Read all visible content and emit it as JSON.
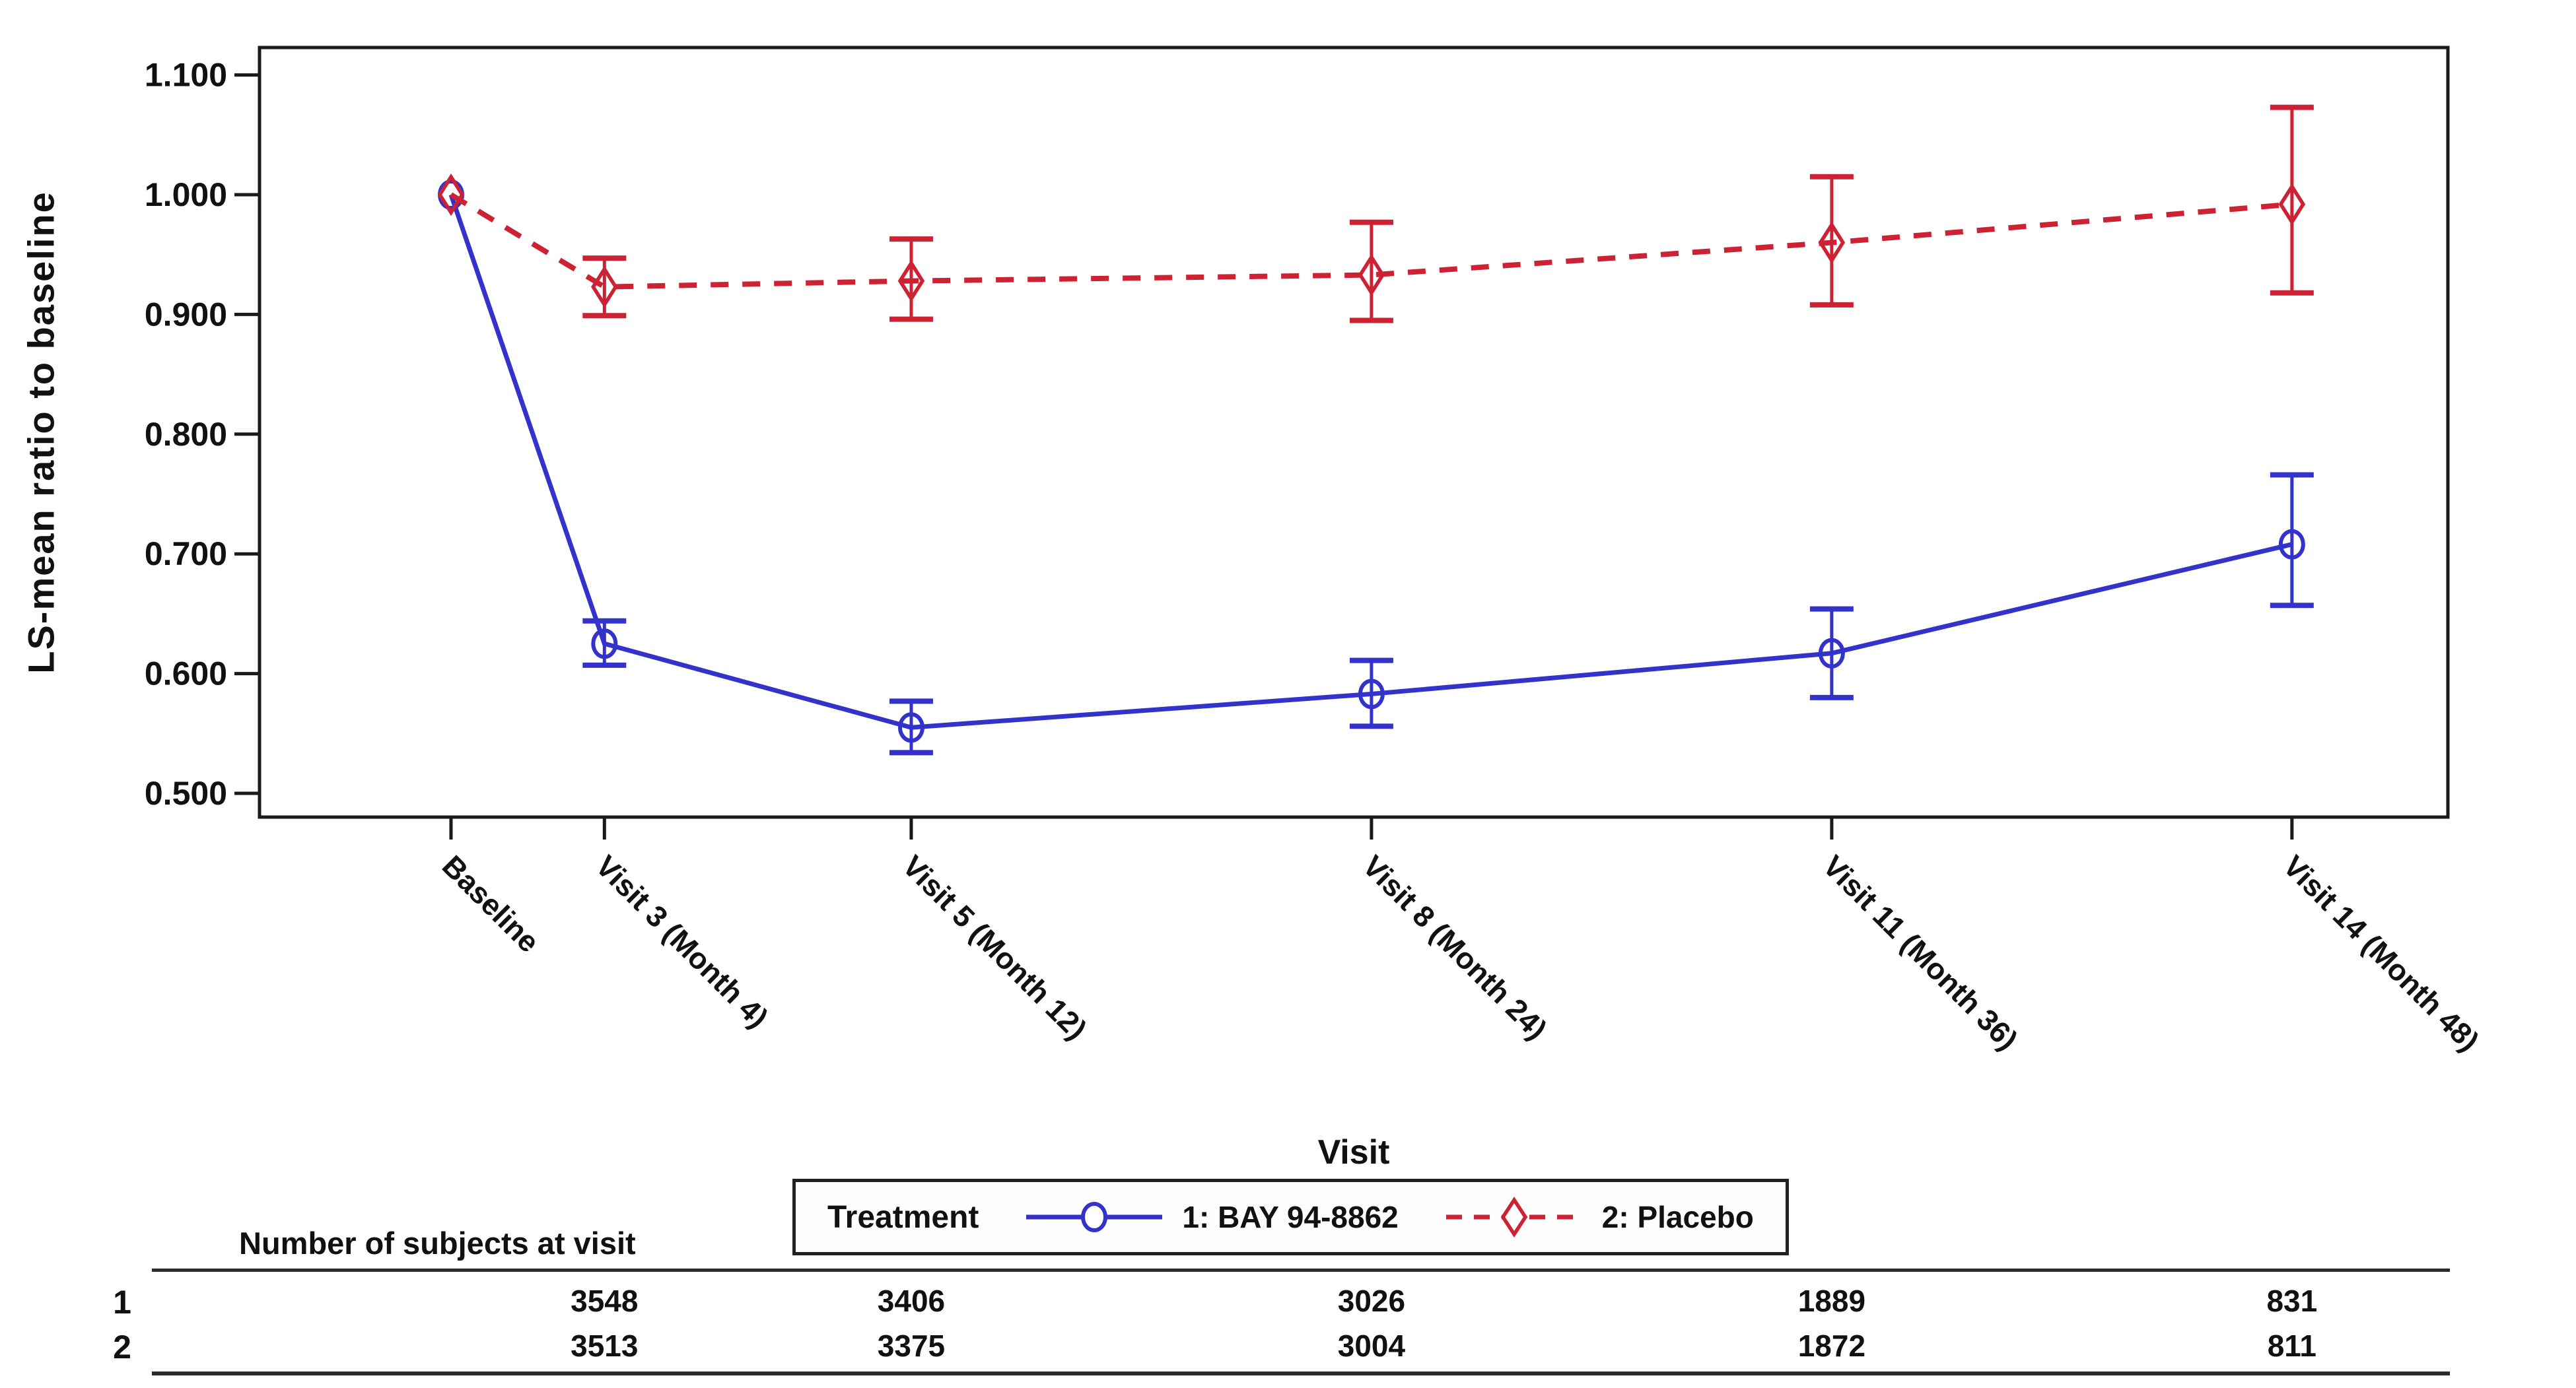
{
  "chart_data": {
    "type": "line",
    "title": "",
    "ylabel": "LS-mean ratio to baseline",
    "xlabel": "Visit",
    "ylim": [
      0.48,
      1.123
    ],
    "y_ticks": [
      1.1,
      1.0,
      0.9,
      0.8,
      0.7,
      0.6,
      0.5
    ],
    "y_tick_format_decimals": 3,
    "grid": false,
    "categories": [
      "Baseline",
      "Visit 3 (Month 4)",
      "Visit 5 (Month 12)",
      "Visit 8 (Month 24)",
      "Visit 11 (Month 36)",
      "Visit 14 (Month 48)"
    ],
    "x_months": [
      0,
      4,
      12,
      24,
      36,
      48
    ],
    "xlim_months": [
      -5,
      52.6
    ],
    "legend": {
      "title": "Treatment",
      "position": "bottom-center",
      "border": true
    },
    "series": [
      {
        "name": "1: BAY 94-8862",
        "color": "#3333cc",
        "line_style": "solid",
        "marker": "circle",
        "values": [
          1.0,
          0.625,
          0.555,
          0.583,
          0.617,
          0.708
        ],
        "ci_low": [
          null,
          0.607,
          0.534,
          0.556,
          0.58,
          0.657
        ],
        "ci_high": [
          null,
          0.644,
          0.577,
          0.611,
          0.654,
          0.766
        ]
      },
      {
        "name": "2: Placebo",
        "color": "#cc2233",
        "line_style": "dashed",
        "marker": "diamond",
        "values": [
          1.0,
          0.923,
          0.928,
          0.933,
          0.96,
          0.992
        ],
        "ci_low": [
          null,
          0.899,
          0.896,
          0.895,
          0.908,
          0.918
        ],
        "ci_high": [
          null,
          0.947,
          0.963,
          0.977,
          1.015,
          1.073
        ]
      }
    ]
  },
  "subject_table": {
    "title": "Number of subjects at visit",
    "count_months": [
      4,
      12,
      24,
      36,
      48
    ],
    "rows": [
      {
        "label": "1",
        "counts": [
          "3548",
          "3406",
          "3026",
          "1889",
          "831"
        ]
      },
      {
        "label": "2",
        "counts": [
          "3513",
          "3375",
          "3004",
          "1872",
          "811"
        ]
      }
    ]
  },
  "colors": {
    "axis": "#1a1a1a",
    "text": "#111111",
    "background": "#ffffff"
  }
}
